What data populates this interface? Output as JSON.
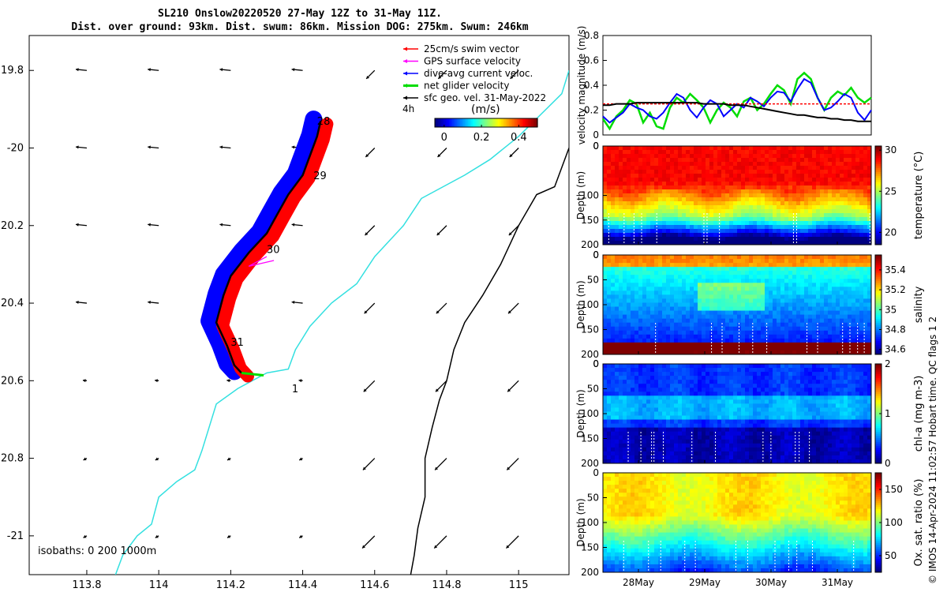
{
  "title": {
    "line1": "SL210 Onslow20220520 27-May 12Z to 31-May 11Z.",
    "line2": "Dist. over ground: 93km. Dist. swum: 86km. Mission DOG: 275km. Swum: 246km"
  },
  "map": {
    "xticks": [
      113.8,
      114,
      114.2,
      114.4,
      114.6,
      114.8,
      115
    ],
    "xtick_labels": [
      "113.8",
      "114",
      "114.2",
      "114.4",
      "114.6",
      "114.8",
      "115"
    ],
    "yticks": [
      -19.8,
      -20,
      -20.2,
      -20.4,
      -20.6,
      -20.8,
      -21
    ],
    "ytick_labels": [
      "19.8",
      "-20",
      "20.2",
      "20.4",
      "20.6",
      "20.8",
      "-21"
    ],
    "xlim": [
      113.64,
      115.14
    ],
    "ylim": [
      -21.1,
      -19.71
    ],
    "legend": {
      "items": [
        {
          "label": "25cm/s swim vector",
          "color": "#ff0000"
        },
        {
          "label": "GPS surface velocity",
          "color": "#ff00ff"
        },
        {
          "label": "dive-avg current veloc.",
          "color": "#0000ff"
        },
        {
          "label": "net glider velocity",
          "color": "#00dd00"
        },
        {
          "label": "sfc geo. vel. 31-May-2022",
          "color": "#000000"
        }
      ]
    },
    "colorbar": {
      "label": "(m/s)",
      "ticks": [
        "0",
        "0.2",
        "0.4"
      ],
      "extra_label": "4h"
    },
    "day_labels": [
      {
        "text": "28",
        "lon": 114.44,
        "lat": -19.93
      },
      {
        "text": "29",
        "lon": 114.43,
        "lat": -20.07
      },
      {
        "text": "30",
        "lon": 114.3,
        "lat": -20.26
      },
      {
        "text": "31",
        "lon": 114.2,
        "lat": -20.5
      },
      {
        "text": "1",
        "lon": 114.37,
        "lat": -20.62
      }
    ],
    "isobaths_note": "isobaths: 0   200  1000m"
  },
  "chart_data": [
    {
      "type": "line",
      "ylabel": "velocity magnitude (m/s)",
      "ylim": [
        0,
        0.8
      ],
      "yticks": [
        0,
        0.2,
        0.4,
        0.6,
        0.8
      ],
      "series": [
        {
          "color": "#00dd00",
          "values": [
            0.13,
            0.05,
            0.15,
            0.2,
            0.28,
            0.25,
            0.1,
            0.18,
            0.07,
            0.05,
            0.22,
            0.3,
            0.26,
            0.33,
            0.28,
            0.22,
            0.1,
            0.2,
            0.26,
            0.22,
            0.15,
            0.27,
            0.3,
            0.2,
            0.25,
            0.33,
            0.4,
            0.36,
            0.25,
            0.45,
            0.5,
            0.45,
            0.3,
            0.2,
            0.3,
            0.35,
            0.32,
            0.38,
            0.3,
            0.26,
            0.3
          ]
        },
        {
          "color": "#0000ff",
          "values": [
            0.15,
            0.1,
            0.14,
            0.18,
            0.25,
            0.22,
            0.2,
            0.15,
            0.13,
            0.18,
            0.26,
            0.33,
            0.3,
            0.2,
            0.14,
            0.22,
            0.28,
            0.25,
            0.15,
            0.2,
            0.25,
            0.22,
            0.3,
            0.27,
            0.23,
            0.3,
            0.35,
            0.34,
            0.27,
            0.37,
            0.45,
            0.42,
            0.3,
            0.2,
            0.22,
            0.27,
            0.33,
            0.3,
            0.18,
            0.12,
            0.2
          ]
        },
        {
          "color": "#ff0000",
          "values": [
            0.25,
            0.25,
            0.25,
            0.25,
            0.25,
            0.25,
            0.25,
            0.25,
            0.25,
            0.25,
            0.25,
            0.25,
            0.25,
            0.25,
            0.25,
            0.25,
            0.25,
            0.25,
            0.25,
            0.25,
            0.25,
            0.25,
            0.25,
            0.25,
            0.25,
            0.25,
            0.25,
            0.25,
            0.25,
            0.25,
            0.25,
            0.25,
            0.25,
            0.25,
            0.25,
            0.25,
            0.25,
            0.25,
            0.25,
            0.25,
            0.25
          ]
        },
        {
          "color": "#000000",
          "values": [
            0.24,
            0.24,
            0.25,
            0.25,
            0.25,
            0.26,
            0.26,
            0.26,
            0.26,
            0.26,
            0.26,
            0.26,
            0.26,
            0.26,
            0.26,
            0.25,
            0.25,
            0.25,
            0.25,
            0.24,
            0.24,
            0.24,
            0.23,
            0.22,
            0.21,
            0.2,
            0.19,
            0.18,
            0.17,
            0.16,
            0.16,
            0.15,
            0.14,
            0.14,
            0.13,
            0.13,
            0.12,
            0.12,
            0.11,
            0.11,
            0.11
          ]
        }
      ]
    },
    {
      "type": "heatmap",
      "variable": "temperature",
      "ylabel": "Depth (m)",
      "colorbar_label": "temperature (°C)",
      "colorbar_ticks": [
        20,
        25,
        30
      ],
      "colorbar_range": [
        18.5,
        30.5
      ],
      "yticks": [
        0,
        100,
        150,
        200
      ],
      "ylim": [
        0,
        200
      ]
    },
    {
      "type": "heatmap",
      "variable": "salinity",
      "ylabel": "Depth (m)",
      "colorbar_label": "salinity",
      "colorbar_ticks": [
        34.6,
        34.8,
        35,
        35.2,
        35.4
      ],
      "colorbar_range": [
        34.55,
        35.55
      ],
      "yticks": [
        0,
        50,
        100,
        150,
        200
      ],
      "ylim": [
        0,
        200
      ]
    },
    {
      "type": "heatmap",
      "variable": "chl-a",
      "ylabel": "Depth (m)",
      "colorbar_label": "chl-a (mg m-3)",
      "colorbar_ticks": [
        0,
        1,
        2
      ],
      "colorbar_range": [
        0,
        2
      ],
      "yticks": [
        0,
        50,
        100,
        150,
        200
      ],
      "ylim": [
        0,
        200
      ]
    },
    {
      "type": "heatmap",
      "variable": "oxygen",
      "ylabel": "Depth (m)",
      "colorbar_label": "Ox. sat. ratio (%)",
      "colorbar_ticks": [
        50,
        100,
        150
      ],
      "colorbar_range": [
        25,
        175
      ],
      "yticks": [
        50,
        100,
        150,
        200
      ],
      "ylim": [
        0,
        200
      ]
    }
  ],
  "time_axis": {
    "ticks": [
      "28May",
      "29May",
      "30May",
      "31May"
    ]
  },
  "side_note": "© IMOS 14-Apr-2024 11:02:57 Hobart time. QC flags 1  2",
  "colors": {
    "track_red": "#ff0000",
    "track_blue": "#0000ff",
    "coast_cyan": "#33e0e0",
    "isobath_black": "#000000"
  }
}
